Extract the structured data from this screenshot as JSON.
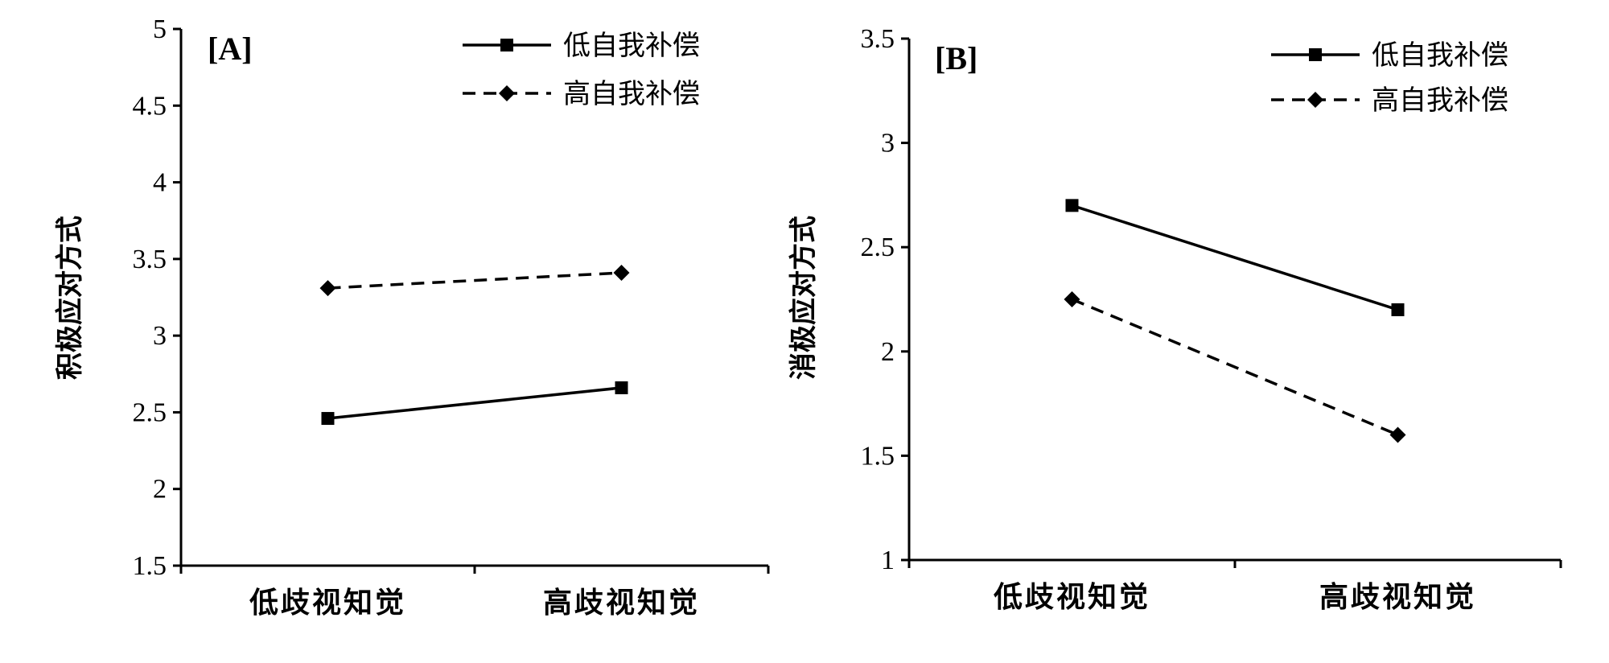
{
  "chart_data": [
    {
      "type": "line",
      "panel": "[A]",
      "ylabel": "积极应对方式",
      "xlabel": "",
      "categories": [
        "低歧视知觉",
        "高歧视知觉"
      ],
      "ylim": [
        1.5,
        5
      ],
      "yticks": [
        1.5,
        2,
        2.5,
        3,
        3.5,
        4,
        4.5,
        5
      ],
      "legend_position": "top-right",
      "grid": false,
      "series": [
        {
          "name": "低自我补偿",
          "values": [
            2.46,
            2.66
          ],
          "style": "solid",
          "marker": "square"
        },
        {
          "name": "高自我补偿",
          "values": [
            3.31,
            3.41
          ],
          "style": "dashed",
          "marker": "diamond"
        }
      ]
    },
    {
      "type": "line",
      "panel": "[B]",
      "ylabel": "消极应对方式",
      "xlabel": "",
      "categories": [
        "低歧视知觉",
        "高歧视知觉"
      ],
      "ylim": [
        1,
        3.5
      ],
      "yticks": [
        1,
        1.5,
        2,
        2.5,
        3,
        3.5
      ],
      "legend_position": "top-right",
      "grid": false,
      "series": [
        {
          "name": "低自我补偿",
          "values": [
            2.7,
            2.2
          ],
          "style": "solid",
          "marker": "square"
        },
        {
          "name": "高自我补偿",
          "values": [
            2.25,
            1.6
          ],
          "style": "dashed",
          "marker": "diamond"
        }
      ]
    }
  ]
}
